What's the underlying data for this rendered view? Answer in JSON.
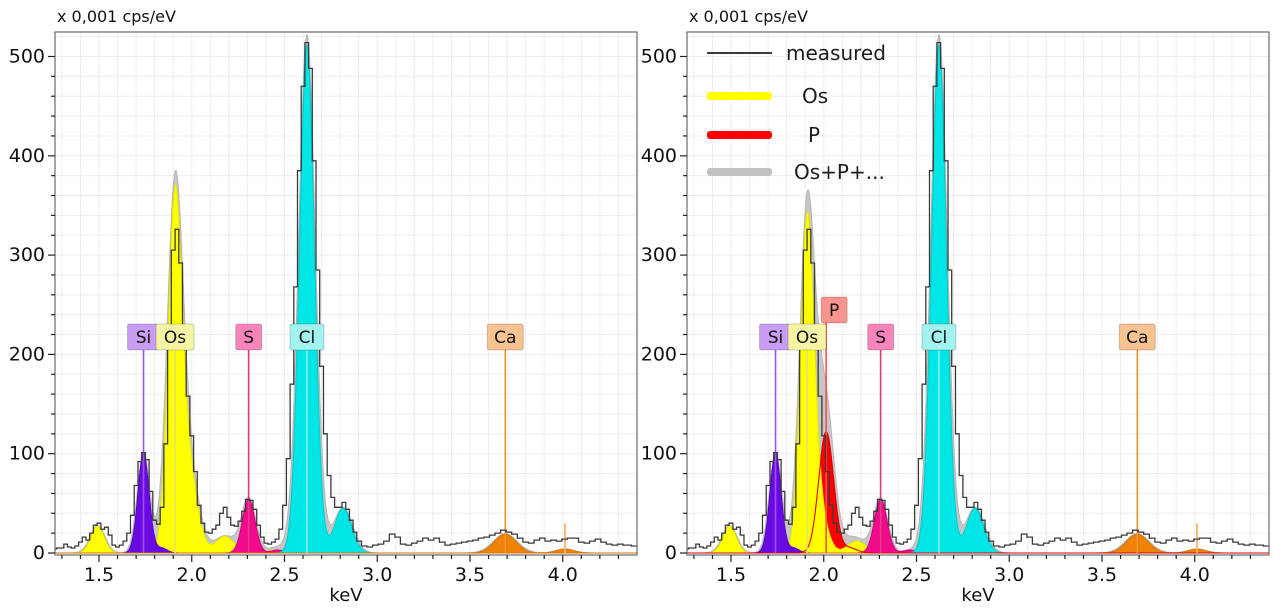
{
  "chart_data": {
    "type": "area",
    "xlabel": "keV",
    "y_unit_label": "x 0,001 cps/eV",
    "xlim": [
      1.263,
      4.4
    ],
    "ylim": [
      0,
      527
    ],
    "x_major_ticks": [
      1.5,
      2.0,
      2.5,
      3.0,
      3.5,
      4.0
    ],
    "y_major_ticks": [
      0,
      100,
      200,
      300,
      400,
      500
    ],
    "x_minor_step": 0.1,
    "y_minor_step": 20,
    "grid": {
      "x_step": 0.1,
      "y_step": 20,
      "color": "#ededed",
      "on": true
    },
    "axis_color": "#6b6b6b",
    "tick_color": "#222222",
    "measured": {
      "label": "measured",
      "color": "#3a3a3a",
      "points": [
        [
          1.263,
          4
        ],
        [
          1.28,
          5
        ],
        [
          1.3,
          5
        ],
        [
          1.32,
          9
        ],
        [
          1.34,
          6
        ],
        [
          1.36,
          5
        ],
        [
          1.38,
          7
        ],
        [
          1.4,
          11
        ],
        [
          1.42,
          16
        ],
        [
          1.44,
          13
        ],
        [
          1.46,
          20
        ],
        [
          1.48,
          28
        ],
        [
          1.5,
          30
        ],
        [
          1.52,
          24
        ],
        [
          1.54,
          26
        ],
        [
          1.56,
          18
        ],
        [
          1.58,
          8
        ],
        [
          1.6,
          6
        ],
        [
          1.62,
          8
        ],
        [
          1.64,
          12
        ],
        [
          1.66,
          20
        ],
        [
          1.68,
          38
        ],
        [
          1.7,
          68
        ],
        [
          1.72,
          92
        ],
        [
          1.74,
          101
        ],
        [
          1.76,
          94
        ],
        [
          1.78,
          62
        ],
        [
          1.8,
          33
        ],
        [
          1.82,
          29
        ],
        [
          1.84,
          46
        ],
        [
          1.86,
          110
        ],
        [
          1.88,
          225
        ],
        [
          1.9,
          305
        ],
        [
          1.92,
          326
        ],
        [
          1.94,
          292
        ],
        [
          1.96,
          222
        ],
        [
          1.98,
          158
        ],
        [
          2.0,
          118
        ],
        [
          2.02,
          82
        ],
        [
          2.04,
          48
        ],
        [
          2.06,
          30
        ],
        [
          2.08,
          21
        ],
        [
          2.1,
          20
        ],
        [
          2.12,
          24
        ],
        [
          2.14,
          28
        ],
        [
          2.16,
          40
        ],
        [
          2.18,
          46
        ],
        [
          2.2,
          36
        ],
        [
          2.22,
          28
        ],
        [
          2.24,
          27
        ],
        [
          2.26,
          32
        ],
        [
          2.28,
          42
        ],
        [
          2.3,
          54
        ],
        [
          2.32,
          53
        ],
        [
          2.34,
          44
        ],
        [
          2.36,
          28
        ],
        [
          2.38,
          16
        ],
        [
          2.4,
          10
        ],
        [
          2.42,
          9
        ],
        [
          2.44,
          11
        ],
        [
          2.46,
          14
        ],
        [
          2.48,
          24
        ],
        [
          2.5,
          48
        ],
        [
          2.52,
          95
        ],
        [
          2.54,
          170
        ],
        [
          2.56,
          268
        ],
        [
          2.58,
          385
        ],
        [
          2.6,
          470
        ],
        [
          2.62,
          514
        ],
        [
          2.64,
          488
        ],
        [
          2.66,
          395
        ],
        [
          2.68,
          285
        ],
        [
          2.7,
          188
        ],
        [
          2.72,
          120
        ],
        [
          2.74,
          78
        ],
        [
          2.76,
          56
        ],
        [
          2.78,
          46
        ],
        [
          2.8,
          46
        ],
        [
          2.82,
          51
        ],
        [
          2.84,
          44
        ],
        [
          2.86,
          33
        ],
        [
          2.88,
          21
        ],
        [
          2.9,
          12
        ],
        [
          2.93,
          7
        ],
        [
          2.96,
          6
        ],
        [
          2.99,
          8
        ],
        [
          3.02,
          9
        ],
        [
          3.05,
          12
        ],
        [
          3.08,
          19
        ],
        [
          3.11,
          16
        ],
        [
          3.14,
          9
        ],
        [
          3.17,
          8
        ],
        [
          3.2,
          10
        ],
        [
          3.23,
          12
        ],
        [
          3.26,
          15
        ],
        [
          3.29,
          13
        ],
        [
          3.32,
          15
        ],
        [
          3.35,
          11
        ],
        [
          3.38,
          8
        ],
        [
          3.41,
          9
        ],
        [
          3.44,
          10
        ],
        [
          3.47,
          11
        ],
        [
          3.5,
          12
        ],
        [
          3.53,
          13
        ],
        [
          3.56,
          15
        ],
        [
          3.59,
          16
        ],
        [
          3.62,
          18
        ],
        [
          3.65,
          20
        ],
        [
          3.68,
          23
        ],
        [
          3.71,
          21
        ],
        [
          3.74,
          19
        ],
        [
          3.77,
          15
        ],
        [
          3.8,
          11
        ],
        [
          3.83,
          10
        ],
        [
          3.86,
          13
        ],
        [
          3.89,
          15
        ],
        [
          3.92,
          12
        ],
        [
          3.95,
          13
        ],
        [
          3.98,
          12
        ],
        [
          4.01,
          14
        ],
        [
          4.04,
          15
        ],
        [
          4.07,
          15
        ],
        [
          4.1,
          11
        ],
        [
          4.13,
          10
        ],
        [
          4.16,
          12
        ],
        [
          4.19,
          14
        ],
        [
          4.22,
          11
        ],
        [
          4.25,
          9
        ],
        [
          4.28,
          8
        ],
        [
          4.31,
          9
        ],
        [
          4.34,
          8
        ],
        [
          4.4,
          7
        ]
      ]
    },
    "sum_fit": {
      "label": "Os+P+...",
      "fill": "#c6c6c6",
      "stroke": "#b6b6b6"
    },
    "elements": {
      "Si": {
        "symbol": "Si",
        "line_kev": 1.74,
        "fill": "#6a0ae2",
        "stroke": "#5806c0",
        "marker": "#a050f0",
        "label_bg": "#c89cf2"
      },
      "Os": {
        "symbol": "Os",
        "line_kev": 1.91,
        "fill": "#ffff00",
        "stroke": "#e4e400",
        "marker": "#e2e26a",
        "label_bg": "#f4f4a4"
      },
      "P": {
        "symbol": "P",
        "line_kev": 2.013,
        "fill": "#ff0000",
        "stroke": "#dd0000",
        "marker": "#ef5350",
        "label_bg": "#f8948d"
      },
      "S": {
        "symbol": "S",
        "line_kev": 2.307,
        "fill": "#f20a8c",
        "stroke": "#d40077",
        "marker": "#e23c86",
        "label_bg": "#f884bc"
      },
      "Cl": {
        "symbol": "Cl",
        "line_kev": 2.621,
        "fill": "#00e6e6",
        "stroke": "#00c8c8",
        "marker": "#86ecec",
        "label_bg": "#a2f2f0"
      },
      "Ca": {
        "symbol": "Ca",
        "line_kev": 3.69,
        "fill": "#f08206",
        "stroke": "#d87300",
        "marker": "#f0953a",
        "label_bg": "#f6c391",
        "extra_line": {
          "kev": 4.012,
          "top_value": 30,
          "color": "#f6b36a"
        }
      }
    },
    "panels": [
      {
        "name": "left",
        "labels": [
          "Si",
          "Os",
          "S",
          "Cl",
          "Ca"
        ],
        "draw_order": [
          "Os",
          "Si",
          "S",
          "Cl",
          "Ca"
        ],
        "outline": [],
        "legend": false,
        "fits": {
          "Si": [
            [
              1.74,
              100,
              0.03
            ],
            [
              1.837,
              5,
              0.03
            ]
          ],
          "Os": [
            [
              1.492,
              27,
              0.036
            ],
            [
              1.91,
              355,
              0.038
            ],
            [
              1.99,
              75,
              0.045
            ],
            [
              2.178,
              17,
              0.05
            ],
            [
              2.45,
              3,
              0.05
            ]
          ],
          "S": [
            [
              2.307,
              54,
              0.034
            ],
            [
              2.464,
              3,
              0.035
            ]
          ],
          "Cl": [
            [
              2.621,
              512,
              0.04
            ],
            [
              2.816,
              45,
              0.046
            ]
          ],
          "Ca": [
            [
              3.69,
              19,
              0.058
            ],
            [
              4.012,
              4,
              0.045
            ]
          ]
        }
      },
      {
        "name": "right",
        "labels": [
          "Si",
          "Os",
          "P",
          "S",
          "Cl",
          "Ca"
        ],
        "draw_order": [
          "P",
          "Os",
          "Si",
          "S",
          "Cl",
          "Ca"
        ],
        "outline": [
          "P"
        ],
        "legend": true,
        "fits": {
          "Si": [
            [
              1.74,
              100,
              0.03
            ],
            [
              1.837,
              5,
              0.03
            ]
          ],
          "Os": [
            [
              1.492,
              27,
              0.036
            ],
            [
              1.91,
              325,
              0.036
            ],
            [
              1.97,
              45,
              0.045
            ],
            [
              2.178,
              12,
              0.05
            ]
          ],
          "P": [
            [
              2.013,
              122,
              0.04
            ],
            [
              2.139,
              5,
              0.04
            ]
          ],
          "S": [
            [
              2.307,
              54,
              0.034
            ],
            [
              2.464,
              3,
              0.035
            ]
          ],
          "Cl": [
            [
              2.621,
              512,
              0.04
            ],
            [
              2.816,
              45,
              0.046
            ]
          ],
          "Ca": [
            [
              3.69,
              19,
              0.058
            ],
            [
              4.012,
              4,
              0.045
            ]
          ]
        }
      }
    ],
    "legend": {
      "position": "top-left",
      "items": [
        {
          "label": "measured",
          "type": "line",
          "color": "#3a3a3a"
        },
        {
          "label": "Os",
          "type": "band",
          "color": "#ffff00"
        },
        {
          "label": "P",
          "type": "band",
          "color": "#ff0000"
        },
        {
          "label": "Os+P+...",
          "type": "band",
          "color": "#c2c2c2"
        }
      ]
    }
  }
}
